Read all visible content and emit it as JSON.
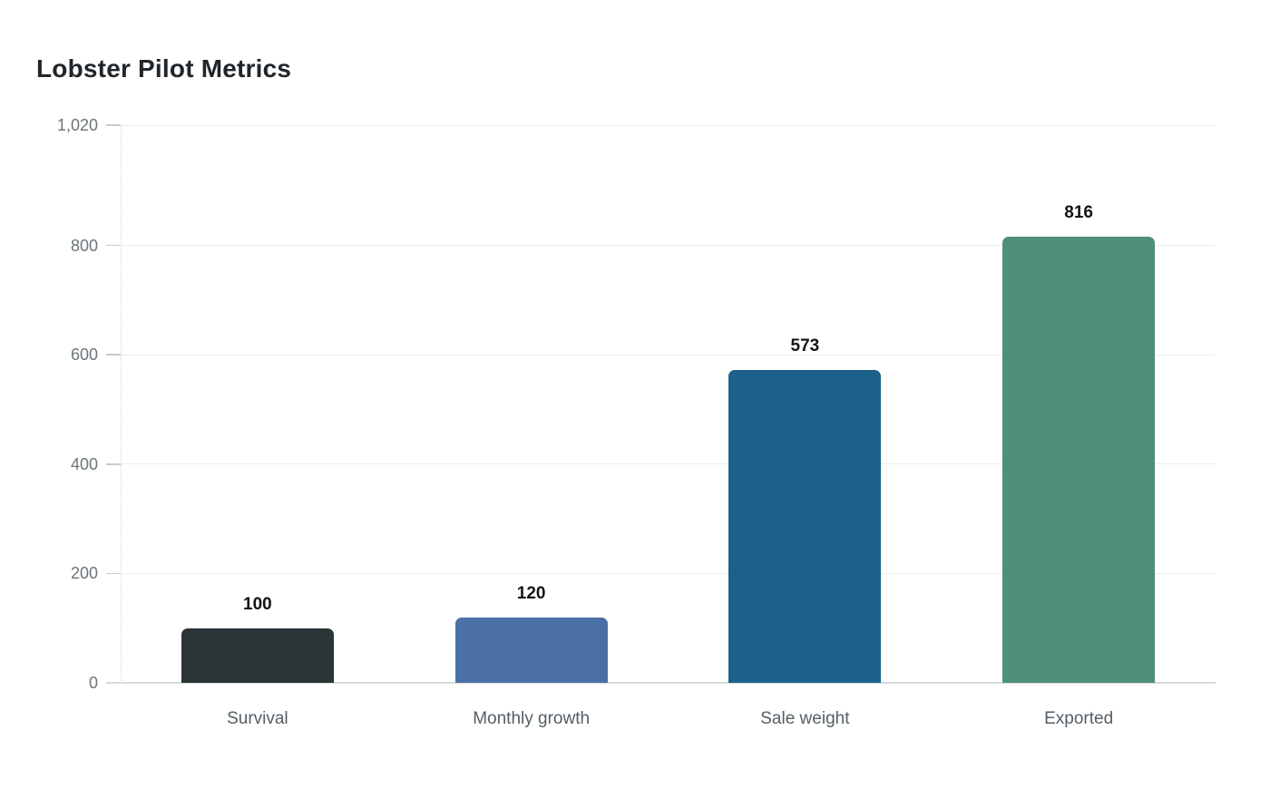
{
  "header": {
    "title": "Lobster Pilot Metrics"
  },
  "chart_data": {
    "type": "bar",
    "title": "Lobster Pilot Metrics",
    "categories": [
      "Survival",
      "Monthly growth",
      "Sale weight",
      "Exported"
    ],
    "values": [
      100,
      120,
      573,
      816
    ],
    "value_labels": [
      "100",
      "120",
      "573",
      "816"
    ],
    "bar_colors": [
      "#2b3436",
      "#4b70a6",
      "#1b618a",
      "#4e8f7c"
    ],
    "yticks": [
      0,
      200,
      400,
      600,
      800,
      1020
    ],
    "ytick_labels": [
      "0",
      "200",
      "400",
      "600",
      "800",
      "1,020"
    ],
    "ylim": [
      0,
      1020
    ],
    "xlabel": "",
    "ylabel": "",
    "grid": "horizontal-only",
    "legend": "none",
    "colors": {
      "background": "#ffffff",
      "title": "#21262b",
      "tick_label": "#6b757b",
      "category_label": "#545f66",
      "value_label": "#131313",
      "gridline": "#ececec",
      "baseline": "#d8dbdd",
      "tick_mark": "#c6cccf",
      "axis_line": "#cfd4d6"
    }
  }
}
